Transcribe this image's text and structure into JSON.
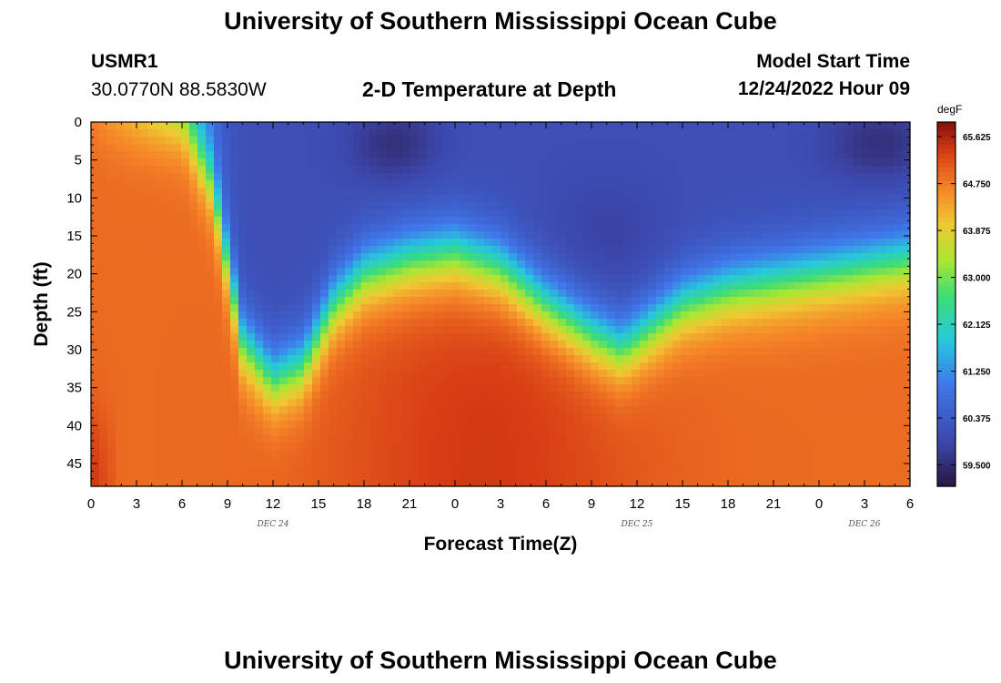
{
  "header": {
    "title": "University of Southern Mississippi Ocean Cube",
    "station": "USMR1",
    "coords": "30.0770N  88.5830W",
    "subtitle": "2-D Temperature at Depth",
    "model_label": "Model Start Time",
    "model_time": "12/24/2022 Hour 09"
  },
  "footer": {
    "title": "University of Southern Mississippi Ocean Cube"
  },
  "chart_data": {
    "type": "heatmap",
    "title": "2-D Temperature at Depth",
    "xlabel": "Forecast Time(Z)",
    "ylabel": "Depth (ft)",
    "x_tick_labels": [
      "0",
      "3",
      "6",
      "9",
      "12",
      "15",
      "18",
      "21",
      "0",
      "3",
      "6",
      "9",
      "12",
      "15",
      "18",
      "21",
      "0",
      "3",
      "6"
    ],
    "x_date_labels": [
      {
        "label": "DEC 24",
        "at_tick": 4
      },
      {
        "label": "DEC 25",
        "at_tick": 12
      },
      {
        "label": "DEC 26",
        "at_tick": 17
      }
    ],
    "x_range_hours": [
      0,
      54
    ],
    "y_ticks": [
      0,
      5,
      10,
      15,
      20,
      25,
      30,
      35,
      40,
      45
    ],
    "y_range": [
      0,
      48
    ],
    "colorbar": {
      "unit": "degF",
      "min": 59.1,
      "max": 65.9,
      "tick_values": [
        65.625,
        64.75,
        63.875,
        63.0,
        62.125,
        61.25,
        60.375,
        59.5
      ],
      "tick_labels": [
        "65.625",
        "64.750",
        "63.875",
        "63.000",
        "62.125",
        "61.250",
        "60.375",
        "59.500"
      ]
    },
    "boundary_depth_ft": {
      "x_hours": [
        0,
        3,
        6,
        8,
        10,
        12,
        14,
        16,
        18,
        21,
        24,
        27,
        30,
        33,
        35,
        37,
        39,
        42,
        45,
        48,
        51,
        54
      ],
      "depth": [
        0,
        0,
        0,
        8,
        29,
        34,
        32,
        24,
        20,
        18,
        17,
        19,
        24,
        28,
        30,
        27,
        24,
        22,
        21,
        20,
        19,
        18
      ]
    },
    "deep_core_temp": 65.5,
    "surface_min_temp": 59.4
  }
}
